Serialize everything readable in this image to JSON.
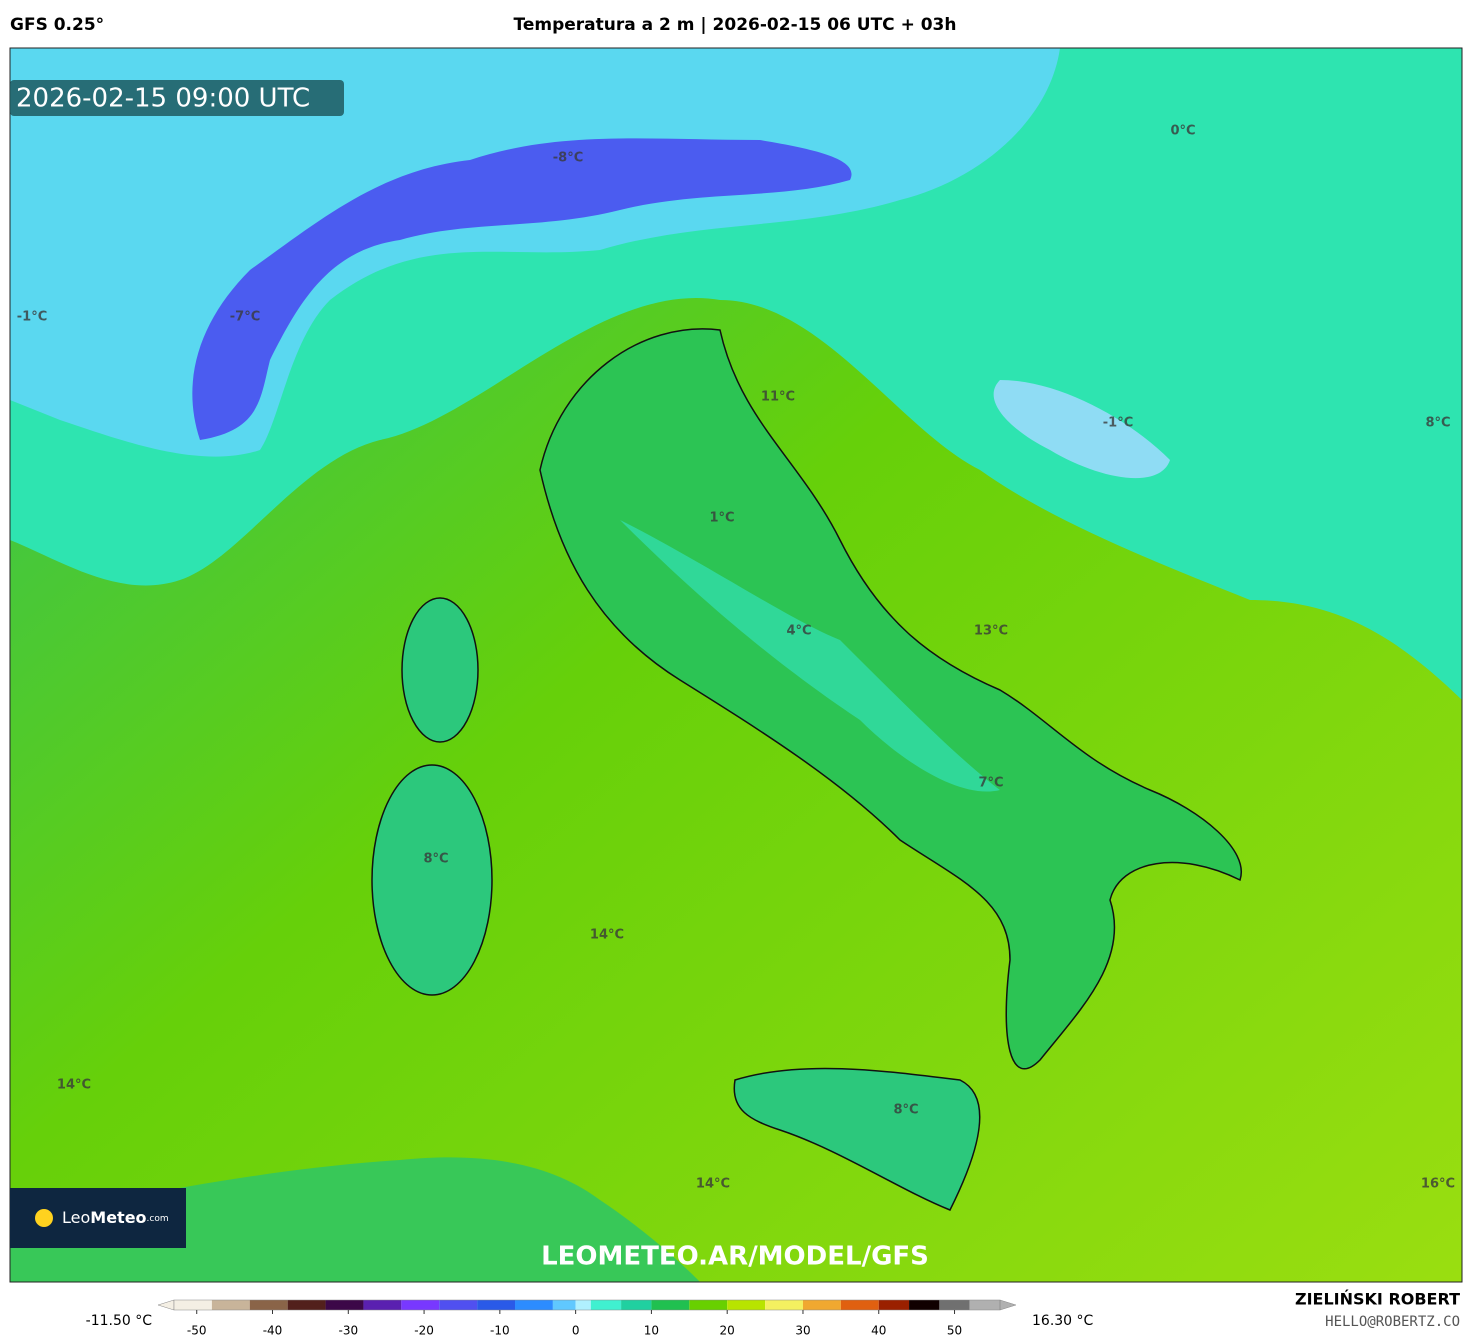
{
  "header": {
    "model": "GFS 0.25°",
    "title": "Temperatura a 2 m | 2026-02-15 06 UTC + 03h"
  },
  "timestamp": "2026-02-15 09:00 UTC",
  "labels": [
    "0°C",
    "-8°C",
    "-1°C",
    "-7°C",
    "11°C",
    "-1°C",
    "8°C",
    "1°C",
    "4°C",
    "13°C",
    "7°C",
    "8°C",
    "14°C",
    "14°C",
    "8°C",
    "14°C",
    "16°C"
  ],
  "watermark": "LEOMETEO.AR/MODEL/GFS",
  "logo": {
    "leo": "Leo",
    "meteo": "Meteo",
    "suffix": ".com"
  },
  "colorbar": {
    "min_label": "-11.50 °C",
    "max_label": "16.30 °C",
    "ticks": [
      -50,
      -40,
      -30,
      -20,
      -10,
      0,
      10,
      20,
      30,
      40,
      50
    ],
    "range": [
      -53,
      56
    ],
    "stops": [
      {
        "value": -53,
        "color": "#f4efe4"
      },
      {
        "value": -48,
        "color": "#c8b49a"
      },
      {
        "value": -43,
        "color": "#8a6448"
      },
      {
        "value": -38,
        "color": "#52201c"
      },
      {
        "value": -33,
        "color": "#3c0848"
      },
      {
        "value": -28,
        "color": "#5a20b0"
      },
      {
        "value": -23,
        "color": "#7838ff"
      },
      {
        "value": -18,
        "color": "#5050f0"
      },
      {
        "value": -13,
        "color": "#2a5ae8"
      },
      {
        "value": -8,
        "color": "#2c8cff"
      },
      {
        "value": -3,
        "color": "#60c8ff"
      },
      {
        "value": 0,
        "color": "#b0f0ff"
      },
      {
        "value": 2,
        "color": "#40f0d0"
      },
      {
        "value": 6,
        "color": "#20d0a0"
      },
      {
        "value": 10,
        "color": "#20c050"
      },
      {
        "value": 15,
        "color": "#68d000"
      },
      {
        "value": 20,
        "color": "#b8e400"
      },
      {
        "value": 25,
        "color": "#f4f060"
      },
      {
        "value": 30,
        "color": "#f0a830"
      },
      {
        "value": 35,
        "color": "#e06010"
      },
      {
        "value": 40,
        "color": "#9a2000"
      },
      {
        "value": 44,
        "color": "#100000"
      },
      {
        "value": 48,
        "color": "#707070"
      },
      {
        "value": 52,
        "color": "#b0b0b0"
      }
    ]
  },
  "credits": {
    "author": "ZIELIŃSKI ROBERT",
    "contact": "HELLO@ROBERTZ.CO"
  }
}
